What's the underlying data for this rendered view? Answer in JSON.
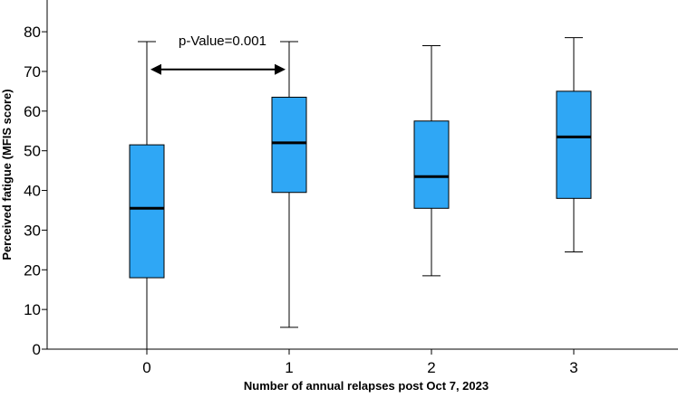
{
  "chart_data": {
    "type": "box",
    "xlabel": "Number of annual relapses post Oct 7, 2023",
    "ylabel": "Perceived fatigue (MFIS score)",
    "ylim": [
      0,
      88
    ],
    "yticks": [
      0,
      10,
      20,
      30,
      40,
      50,
      60,
      70,
      80
    ],
    "categories": [
      "0",
      "1",
      "2",
      "3"
    ],
    "boxes": [
      {
        "category": "0",
        "min": 0,
        "q1": 18,
        "median": 35.5,
        "q3": 51.5,
        "max": 77.5
      },
      {
        "category": "1",
        "min": 5.5,
        "q1": 39.5,
        "median": 52,
        "q3": 63.5,
        "max": 77.5
      },
      {
        "category": "2",
        "min": 18.5,
        "q1": 35.5,
        "median": 43.5,
        "q3": 57.5,
        "max": 76.5
      },
      {
        "category": "3",
        "min": 24.5,
        "q1": 38,
        "median": 53.5,
        "q3": 65,
        "max": 78.5
      }
    ],
    "box_color": "#2FA7F5",
    "grid": false,
    "annotation": {
      "text": "p-Value=0.001",
      "from_category": "0",
      "to_category": "1",
      "y": 70.5
    }
  }
}
